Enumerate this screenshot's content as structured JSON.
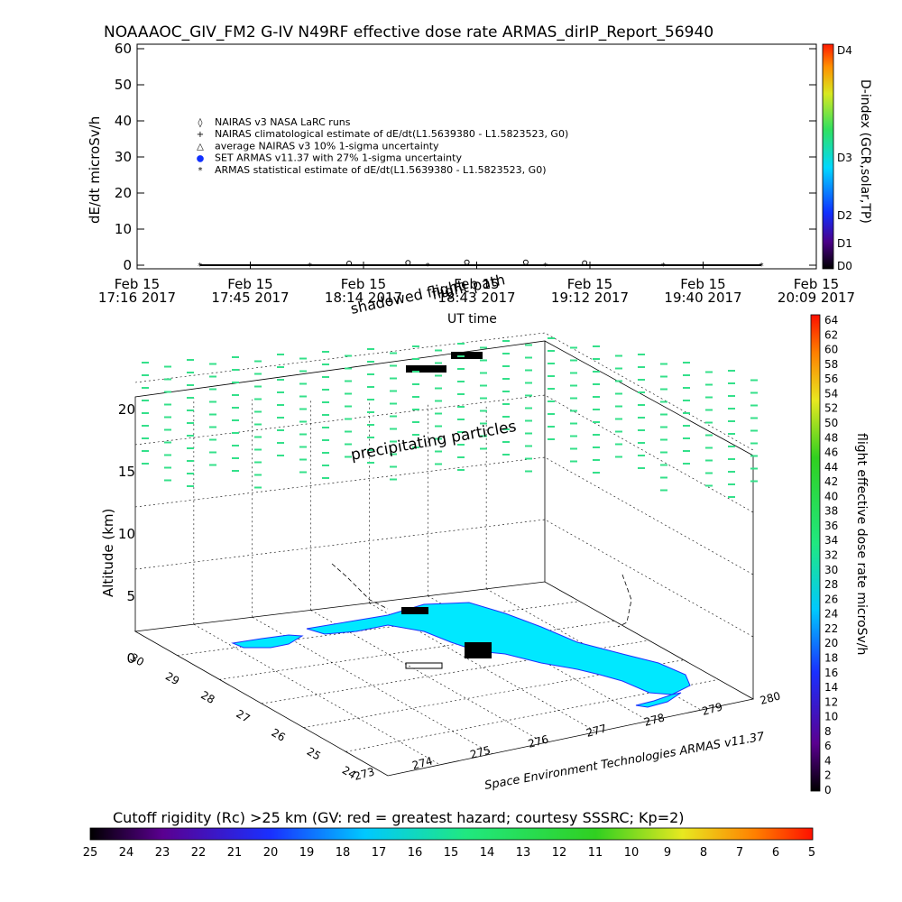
{
  "title": "NOAAAOC_GIV_FM2 G-IV    N49RF   effective dose rate ARMAS_dirIP_Report_56940",
  "top_chart": {
    "ylabel": "dE/dt microSv/h",
    "xlabel": "UT time",
    "yticks": [
      "0",
      "10",
      "20",
      "30",
      "40",
      "50",
      "60"
    ],
    "xticks": [
      {
        "l1": "Feb 15",
        "l2": "17:16 2017"
      },
      {
        "l1": "Feb 15",
        "l2": "17:45 2017"
      },
      {
        "l1": "Feb 15",
        "l2": "18:14 2017"
      },
      {
        "l1": "Feb 15",
        "l2": "18:43 2017"
      },
      {
        "l1": "Feb 15",
        "l2": "19:12 2017"
      },
      {
        "l1": "Feb 15",
        "l2": "19:40 2017"
      },
      {
        "l1": "Feb 15",
        "l2": "20:09 2017"
      }
    ],
    "legend": [
      "NAIRAS v3 NASA LaRC runs",
      "NAIRAS climatological estimate of dE/dt(L1.5639380 - L1.5823523, G0)",
      "average NAIRAS v3 10% 1-sigma uncertainty",
      "SET ARMAS v11.37 with 27% 1-sigma uncertainty",
      "ARMAS statistical estimate of dE/dt(L1.5639380 - L1.5823523, G0)"
    ],
    "dindex": {
      "label": "D-index (GCR,solar,TP)",
      "ticks": [
        "D0",
        "D1",
        "D2",
        "D3",
        "D4"
      ]
    }
  },
  "overlay": {
    "flight_path": "flight path",
    "shadowed": "shadowed flight",
    "precip": "precipitating particles"
  },
  "map3d": {
    "zlabel": "Altitude (km)",
    "zticks": [
      "0",
      "5",
      "10",
      "15",
      "20"
    ],
    "lat_ticks": [
      "24",
      "25",
      "26",
      "27",
      "28",
      "29",
      "30"
    ],
    "lon_ticks": [
      "273",
      "274",
      "275",
      "276",
      "277",
      "278",
      "279",
      "280"
    ],
    "credit": "Space Environment Technologies ARMAS v11.37"
  },
  "right_colorbar": {
    "label": "flight effective dose rate microSv/h",
    "ticks": [
      "0",
      "2",
      "4",
      "6",
      "8",
      "10",
      "12",
      "14",
      "16",
      "18",
      "20",
      "22",
      "24",
      "26",
      "28",
      "30",
      "32",
      "34",
      "36",
      "38",
      "40",
      "42",
      "44",
      "46",
      "48",
      "50",
      "52",
      "54",
      "56",
      "58",
      "60",
      "62",
      "64"
    ]
  },
  "bottom_colorbar": {
    "label": "Cutoff rigidity (Rc) >25 km (GV: red = greatest hazard; courtesy SSSRC; Kp=2)",
    "ticks": [
      "25",
      "24",
      "23",
      "22",
      "21",
      "20",
      "19",
      "18",
      "17",
      "16",
      "15",
      "14",
      "13",
      "12",
      "11",
      "10",
      "9",
      "8",
      "7",
      "6",
      "5"
    ]
  },
  "chart_data": {
    "type": "scatter",
    "title": "NOAAAOC_GIV_FM2 G-IV    N49RF   effective dose rate ARMAS_dirIP_Report_56940",
    "xlabel": "UT time",
    "ylabel": "dE/dt microSv/h",
    "ylim": [
      0,
      60
    ],
    "xlim": [
      "17:16",
      "20:09"
    ],
    "grid": false,
    "legend_position": "upper-left",
    "series": [
      {
        "name": "NAIRAS v3 NASA LaRC runs",
        "x": [
          "18:10",
          "18:25",
          "18:40",
          "18:55",
          "19:10"
        ],
        "values": [
          0.5,
          0.7,
          0.8,
          0.8,
          0.6
        ]
      },
      {
        "name": "ARMAS statistical estimate of dE/dt(L1.5639380 - L1.5823523, G0)",
        "x": [
          "17:32",
          "18:00",
          "18:30",
          "19:00",
          "19:30",
          "19:55"
        ],
        "values": [
          0,
          0,
          0,
          0,
          0,
          0
        ]
      }
    ]
  }
}
